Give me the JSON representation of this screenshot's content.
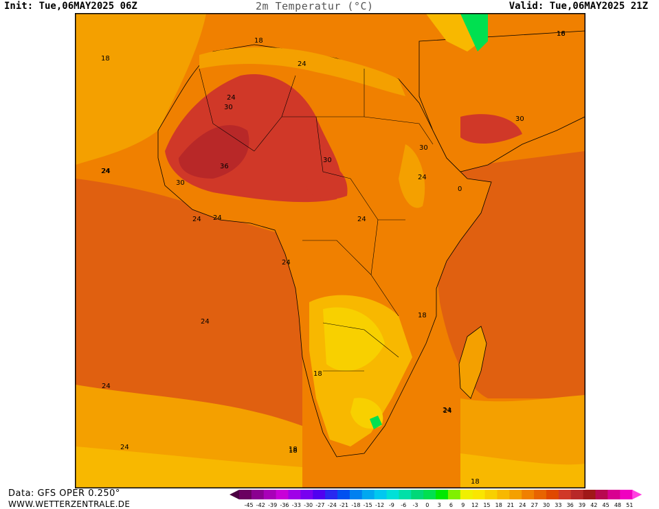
{
  "header": {
    "init": "Init: Tue,06MAY2025 06Z",
    "title": "2m Temperatur (°C)",
    "valid": "Valid: Tue,06MAY2025 21Z"
  },
  "footer": {
    "data_source": "Data: GFS OPER 0.250°",
    "website": "WWW.WETTERZENTRALE.DE"
  },
  "contour_labels": [
    "18",
    "16",
    "18",
    "24",
    "24",
    "30",
    "30",
    "36",
    "30",
    "24",
    "30",
    "30",
    "24",
    "0",
    "24",
    "24",
    "24",
    "24",
    "18",
    "24",
    "18",
    "24",
    "24",
    "18",
    "18",
    "18",
    "24",
    "24",
    "18",
    "24"
  ],
  "colorbar": {
    "ticks": [
      "-45",
      "-42",
      "-39",
      "-36",
      "-33",
      "-30",
      "-27",
      "-24",
      "-21",
      "-18",
      "-15",
      "-12",
      "-9",
      "-6",
      "-3",
      "0",
      "3",
      "6",
      "9",
      "12",
      "15",
      "18",
      "21",
      "24",
      "27",
      "30",
      "33",
      "36",
      "39",
      "42",
      "45",
      "48",
      "51"
    ],
    "colors": [
      "#4b0042",
      "#6a0060",
      "#8a0090",
      "#a800b8",
      "#c800d8",
      "#a000e8",
      "#7800f0",
      "#5000f0",
      "#2828f0",
      "#0050f0",
      "#0080f0",
      "#00a8f0",
      "#00c8f0",
      "#00e0d8",
      "#00e0a8",
      "#00d878",
      "#00e050",
      "#00e800",
      "#80f000",
      "#f0f000",
      "#fae600",
      "#f8d000",
      "#f8b800",
      "#f4a000",
      "#f08000",
      "#e86400",
      "#e04800",
      "#d03828",
      "#b82828",
      "#a01818",
      "#b80850",
      "#d80090",
      "#f000c0",
      "#ff40e0"
    ]
  },
  "map_colors": {
    "ocean_warm": "#e06010",
    "ocean_mid": "#f08000",
    "ocean_cool": "#f4a000",
    "hot": "#d03828",
    "very_hot": "#b82828",
    "mild": "#f8b800",
    "cool": "#f8d000",
    "cold": "#f0f000",
    "green": "#00e050"
  }
}
